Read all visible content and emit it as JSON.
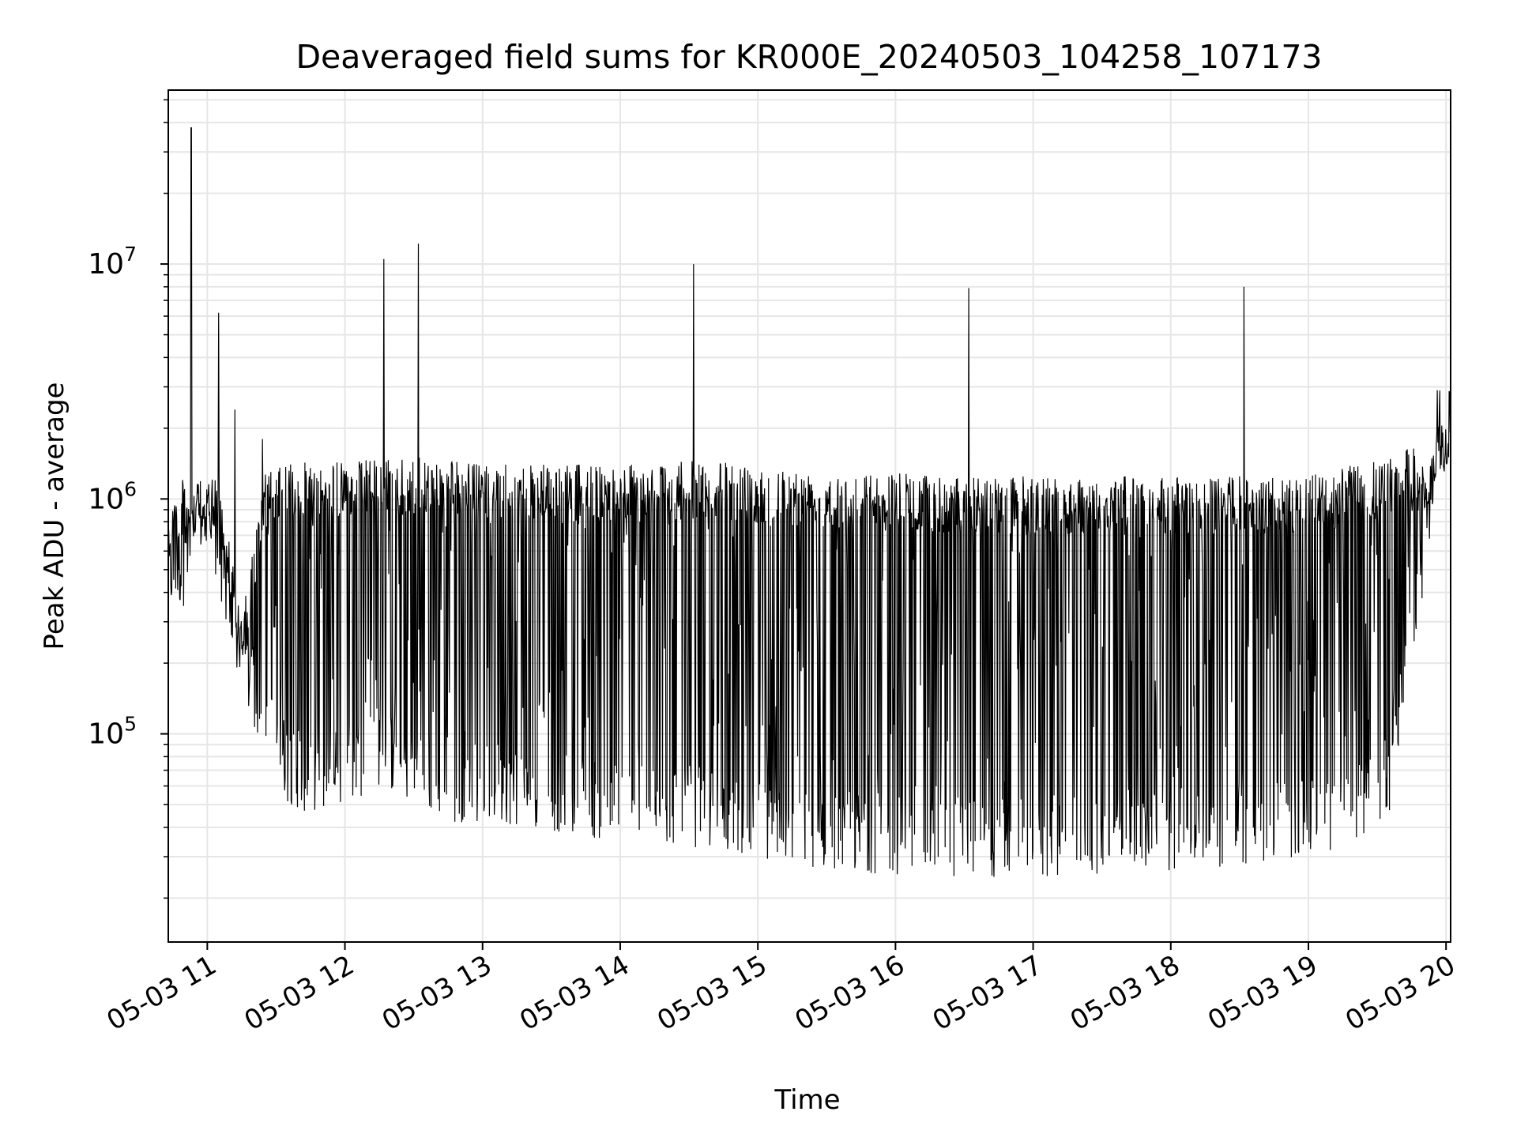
{
  "chart_data": {
    "type": "line",
    "title": "Deaveraged field sums for KR000E_20240503_104258_107173",
    "xlabel": "Time",
    "ylabel": "Peak ADU - average",
    "yscale": "log",
    "xlim": [
      "2024-05-03 10:43",
      "2024-05-03 20:02"
    ],
    "ylim": [
      13000,
      55000000
    ],
    "grid": true,
    "line_color": "#000000",
    "grid_color": "#e6e6e6",
    "x_ticks": [
      "05-03 11",
      "05-03 12",
      "05-03 13",
      "05-03 14",
      "05-03 15",
      "05-03 16",
      "05-03 17",
      "05-03 18",
      "05-03 19",
      "05-03 20"
    ],
    "y_ticks": [
      {
        "value": 100000,
        "base": "10",
        "exp": "5"
      },
      {
        "value": 1000000,
        "base": "10",
        "exp": "6"
      },
      {
        "value": 10000000,
        "base": "10",
        "exp": "7"
      }
    ],
    "series": [
      {
        "x": [
          "2024-05-03 10:43",
          "2024-05-03 10:50",
          "2024-05-03 11:00",
          "2024-05-03 11:05",
          "2024-05-03 11:15",
          "2024-05-03 11:25",
          "2024-05-03 11:35",
          "2024-05-03 11:45",
          "2024-05-03 12:00",
          "2024-05-03 12:15",
          "2024-05-03 12:30",
          "2024-05-03 12:45",
          "2024-05-03 13:00",
          "2024-05-03 13:20",
          "2024-05-03 13:40",
          "2024-05-03 14:00",
          "2024-05-03 14:20",
          "2024-05-03 14:40",
          "2024-05-03 15:00",
          "2024-05-03 15:20",
          "2024-05-03 15:40",
          "2024-05-03 16:00",
          "2024-05-03 16:20",
          "2024-05-03 16:40",
          "2024-05-03 17:00",
          "2024-05-03 17:20",
          "2024-05-03 17:40",
          "2024-05-03 18:00",
          "2024-05-03 18:20",
          "2024-05-03 18:40",
          "2024-05-03 19:00",
          "2024-05-03 19:20",
          "2024-05-03 19:35",
          "2024-05-03 19:45",
          "2024-05-03 19:52",
          "2024-05-03 19:56",
          "2024-05-03 20:00",
          "2024-05-03 20:02"
        ],
        "upper": [
          1000000,
          1250000,
          1100000,
          1400000,
          300000,
          1300000,
          1400000,
          1450000,
          1450000,
          1500000,
          1500000,
          1500000,
          1400000,
          1400000,
          1400000,
          1400000,
          1450000,
          1450000,
          1400000,
          1350000,
          1300000,
          1300000,
          1250000,
          1250000,
          1250000,
          1250000,
          1250000,
          1250000,
          1250000,
          1250000,
          1250000,
          1400000,
          1500000,
          1700000,
          1300000,
          2100000,
          2300000,
          2200000
        ],
        "lower": [
          330000,
          350000,
          700000,
          400000,
          140000,
          80000,
          50000,
          45000,
          50000,
          60000,
          50000,
          42000,
          42000,
          40000,
          37000,
          34000,
          34000,
          32000,
          30000,
          27000,
          26000,
          25000,
          25000,
          24000,
          24000,
          25000,
          26000,
          26000,
          27000,
          28000,
          30000,
          33000,
          45000,
          180000,
          500000,
          1300000,
          1400000,
          1350000
        ],
        "spikes": [
          {
            "x": "2024-05-03 10:53",
            "y": 38000000
          },
          {
            "x": "2024-05-03 11:05",
            "y": 6200000
          },
          {
            "x": "2024-05-03 11:12",
            "y": 2400000
          },
          {
            "x": "2024-05-03 11:24",
            "y": 1800000
          },
          {
            "x": "2024-05-03 12:17",
            "y": 10500000
          },
          {
            "x": "2024-05-03 12:32",
            "y": 12200000
          },
          {
            "x": "2024-05-03 14:32",
            "y": 10000000
          },
          {
            "x": "2024-05-03 16:32",
            "y": 7900000
          },
          {
            "x": "2024-05-03 18:32",
            "y": 8000000
          }
        ]
      }
    ]
  }
}
